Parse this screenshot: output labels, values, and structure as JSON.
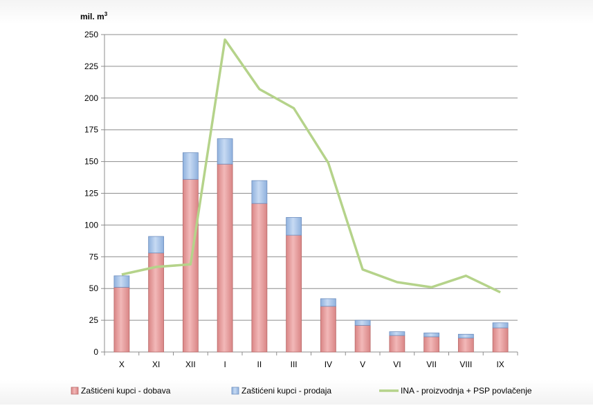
{
  "chart_data": {
    "type": "bar",
    "stacked": true,
    "y_unit_label": "mil. m",
    "y_unit_superscript": "3",
    "ylim": [
      0,
      250
    ],
    "yticks": [
      0,
      25,
      50,
      75,
      100,
      125,
      150,
      175,
      200,
      225,
      250
    ],
    "grid": true,
    "legend_position": "bottom",
    "categories": [
      "X",
      "XI",
      "XII",
      "I",
      "II",
      "III",
      "IV",
      "V",
      "VI",
      "VII",
      "VIII",
      "IX"
    ],
    "series": [
      {
        "name": "Zaštićeni kupci - dobava",
        "kind": "bar",
        "color": "#e8a0a0",
        "values": [
          51,
          78,
          136,
          148,
          117,
          92,
          36,
          21,
          13,
          12,
          11,
          19
        ]
      },
      {
        "name": "Zaštićeni kupci - prodaja",
        "kind": "bar",
        "color": "#a9c4e8",
        "values": [
          9,
          13,
          21,
          20,
          18,
          14,
          6,
          4,
          3,
          3,
          3,
          4
        ]
      },
      {
        "name": "INA - proizvodnja + PSP povlačenje",
        "kind": "line",
        "color": "#b5d38a",
        "values": [
          61,
          67,
          69,
          246,
          207,
          192,
          149,
          65,
          55,
          51,
          60,
          47
        ]
      }
    ]
  }
}
